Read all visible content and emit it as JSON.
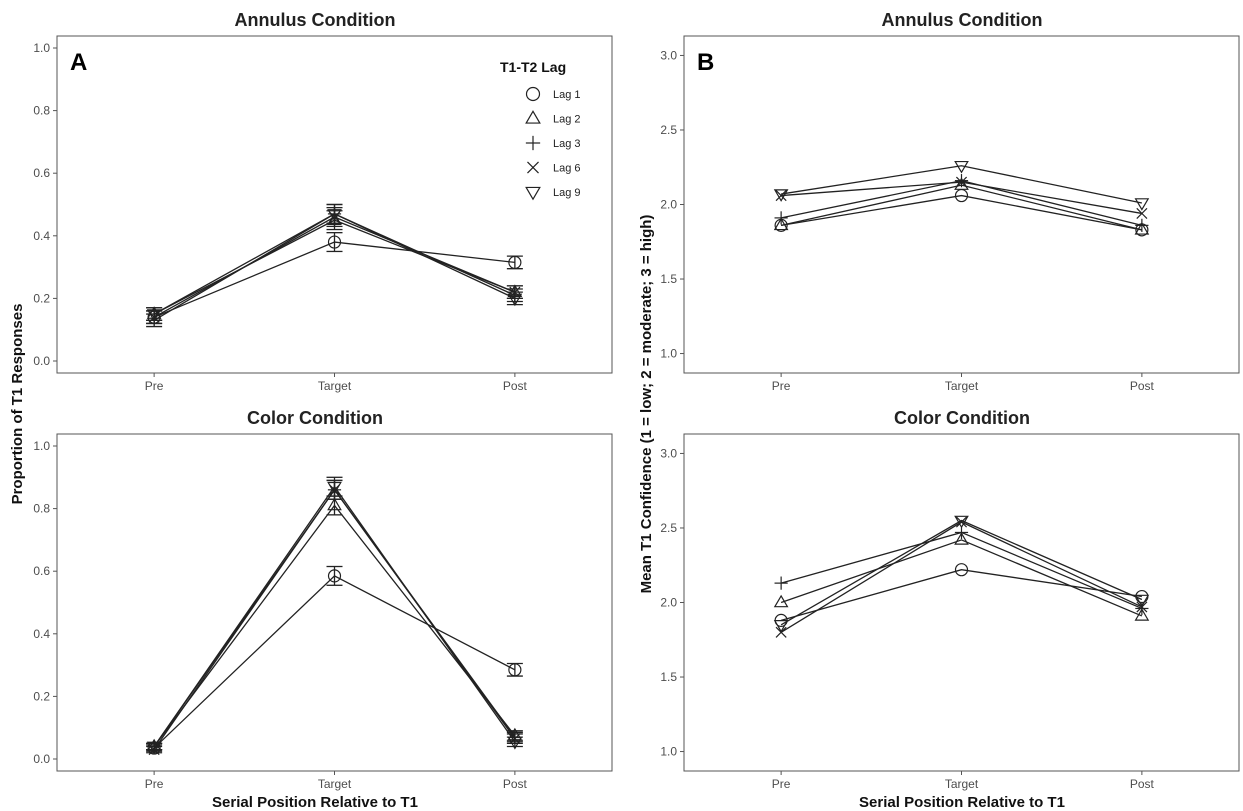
{
  "figure": {
    "ylabel_left": "Proportion of T1 Responses",
    "ylabel_right": "Mean T1 Confidence (1 = low; 2 = moderate; 3 = high)",
    "xlabel_left": "Serial Position Relative to T1",
    "xlabel_right": "Serial Position Relative to T1",
    "letter_a": "A",
    "letter_b": "B"
  },
  "legend": {
    "title": "T1-T2 Lag",
    "entries": [
      {
        "label": "Lag 1",
        "marker": "circle"
      },
      {
        "label": "Lag 2",
        "marker": "triangle-up"
      },
      {
        "label": "Lag 3",
        "marker": "plus"
      },
      {
        "label": "Lag 6",
        "marker": "cross"
      },
      {
        "label": "Lag 9",
        "marker": "triangle-down"
      }
    ]
  },
  "chart_data": [
    {
      "id": "A-annulus",
      "type": "line",
      "title": "Annulus Condition",
      "categories": [
        "Pre",
        "Target",
        "Post"
      ],
      "ylim": [
        0,
        1.0
      ],
      "yticks": [
        "0.0",
        "0.2",
        "0.4",
        "0.6",
        "0.8",
        "1.0"
      ],
      "error_bars": true,
      "series": [
        {
          "name": "Lag 1",
          "marker": "circle",
          "values": [
            0.14,
            0.38,
            0.315
          ],
          "err": [
            0.02,
            0.03,
            0.02
          ]
        },
        {
          "name": "Lag 2",
          "marker": "triangle-up",
          "values": [
            0.15,
            0.45,
            0.22
          ],
          "err": [
            0.02,
            0.03,
            0.02
          ]
        },
        {
          "name": "Lag 3",
          "marker": "plus",
          "values": [
            0.13,
            0.47,
            0.21
          ],
          "err": [
            0.02,
            0.03,
            0.02
          ]
        },
        {
          "name": "Lag 6",
          "marker": "cross",
          "values": [
            0.14,
            0.46,
            0.22
          ],
          "err": [
            0.02,
            0.03,
            0.02
          ]
        },
        {
          "name": "Lag 9",
          "marker": "triangle-down",
          "values": [
            0.15,
            0.47,
            0.2
          ],
          "err": [
            0.02,
            0.03,
            0.02
          ]
        }
      ]
    },
    {
      "id": "B-annulus",
      "type": "line",
      "title": "Annulus Condition",
      "categories": [
        "Pre",
        "Target",
        "Post"
      ],
      "ylim": [
        0.95,
        3.05
      ],
      "yticks": [
        "1.0",
        "1.5",
        "2.0",
        "2.5",
        "3.0"
      ],
      "error_bars": false,
      "series": [
        {
          "name": "Lag 1",
          "marker": "circle",
          "values": [
            1.86,
            2.06,
            1.83
          ]
        },
        {
          "name": "Lag 2",
          "marker": "triangle-up",
          "values": [
            1.86,
            2.13,
            1.83
          ]
        },
        {
          "name": "Lag 3",
          "marker": "plus",
          "values": [
            1.91,
            2.16,
            1.86
          ]
        },
        {
          "name": "Lag 6",
          "marker": "cross",
          "values": [
            2.06,
            2.15,
            1.94
          ]
        },
        {
          "name": "Lag 9",
          "marker": "triangle-down",
          "values": [
            2.07,
            2.26,
            2.01
          ]
        }
      ]
    },
    {
      "id": "A-color",
      "type": "line",
      "title": "Color Condition",
      "categories": [
        "Pre",
        "Target",
        "Post"
      ],
      "ylim": [
        0,
        1.0
      ],
      "yticks": [
        "0.0",
        "0.2",
        "0.4",
        "0.6",
        "0.8",
        "1.0"
      ],
      "error_bars": true,
      "series": [
        {
          "name": "Lag 1",
          "marker": "circle",
          "values": [
            0.035,
            0.585,
            0.285
          ],
          "err": [
            0.01,
            0.03,
            0.02
          ]
        },
        {
          "name": "Lag 2",
          "marker": "triangle-up",
          "values": [
            0.04,
            0.81,
            0.075
          ],
          "err": [
            0.01,
            0.03,
            0.015
          ]
        },
        {
          "name": "Lag 3",
          "marker": "plus",
          "values": [
            0.04,
            0.86,
            0.07
          ],
          "err": [
            0.01,
            0.03,
            0.015
          ]
        },
        {
          "name": "Lag 6",
          "marker": "cross",
          "values": [
            0.03,
            0.86,
            0.065
          ],
          "err": [
            0.01,
            0.03,
            0.015
          ]
        },
        {
          "name": "Lag 9",
          "marker": "triangle-down",
          "values": [
            0.04,
            0.87,
            0.055
          ],
          "err": [
            0.01,
            0.03,
            0.015
          ]
        }
      ]
    },
    {
      "id": "B-color",
      "type": "line",
      "title": "Color Condition",
      "categories": [
        "Pre",
        "Target",
        "Post"
      ],
      "ylim": [
        0.95,
        3.05
      ],
      "yticks": [
        "1.0",
        "1.5",
        "2.0",
        "2.5",
        "3.0"
      ],
      "error_bars": false,
      "series": [
        {
          "name": "Lag 1",
          "marker": "circle",
          "values": [
            1.88,
            2.22,
            2.04
          ]
        },
        {
          "name": "Lag 2",
          "marker": "triangle-up",
          "values": [
            2.0,
            2.42,
            1.91
          ]
        },
        {
          "name": "Lag 3",
          "marker": "plus",
          "values": [
            2.13,
            2.47,
            1.96
          ]
        },
        {
          "name": "Lag 6",
          "marker": "cross",
          "values": [
            1.8,
            2.54,
            1.97
          ]
        },
        {
          "name": "Lag 9",
          "marker": "triangle-down",
          "values": [
            1.85,
            2.55,
            2.02
          ]
        }
      ]
    }
  ]
}
